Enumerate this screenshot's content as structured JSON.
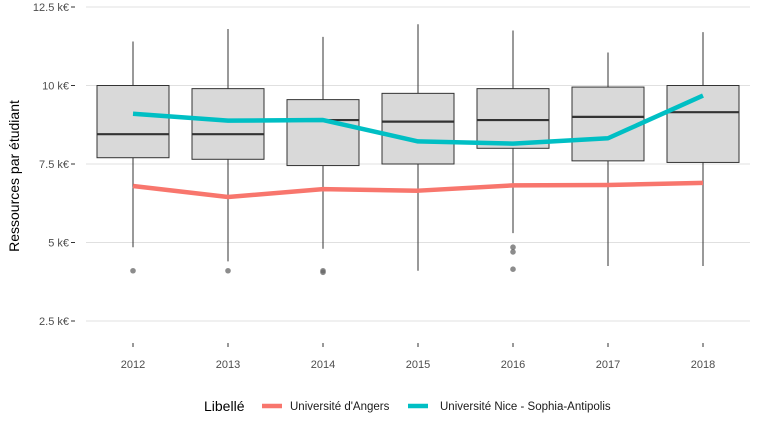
{
  "chart_data": {
    "type": "box",
    "ylabel": "Ressources par étudiant",
    "ylim": [
      1800,
      12500
    ],
    "y_ticks": [
      {
        "value": 2500,
        "label": "2.5 k€"
      },
      {
        "value": 5000,
        "label": "5 k€"
      },
      {
        "value": 7500,
        "label": "7.5 k€"
      },
      {
        "value": 10000,
        "label": "10 k€"
      },
      {
        "value": 12500,
        "label": "12.5 k€"
      }
    ],
    "categories": [
      "2012",
      "2013",
      "2014",
      "2015",
      "2016",
      "2017",
      "2018"
    ],
    "boxes": [
      {
        "year": "2012",
        "whisker_low": 4850,
        "q1": 7700,
        "median": 8450,
        "q3": 10000,
        "whisker_high": 11400,
        "outliers": [
          4100
        ]
      },
      {
        "year": "2013",
        "whisker_low": 4400,
        "q1": 7650,
        "median": 8450,
        "q3": 9900,
        "whisker_high": 11800,
        "outliers": [
          4100
        ]
      },
      {
        "year": "2014",
        "whisker_low": 4800,
        "q1": 7450,
        "median": 8900,
        "q3": 9550,
        "whisker_high": 11550,
        "outliers": [
          4100,
          4050
        ]
      },
      {
        "year": "2015",
        "whisker_low": 4100,
        "q1": 7500,
        "median": 8850,
        "q3": 9750,
        "whisker_high": 11950,
        "outliers": []
      },
      {
        "year": "2016",
        "whisker_low": 5300,
        "q1": 8000,
        "median": 8900,
        "q3": 9900,
        "whisker_high": 11750,
        "outliers": [
          4850,
          4700,
          4150
        ]
      },
      {
        "year": "2017",
        "whisker_low": 4250,
        "q1": 7600,
        "median": 9000,
        "q3": 9950,
        "whisker_high": 11050,
        "outliers": []
      },
      {
        "year": "2018",
        "whisker_low": 4250,
        "q1": 7550,
        "median": 9150,
        "q3": 10000,
        "whisker_high": 11700,
        "outliers": []
      }
    ],
    "series": [
      {
        "name": "Université d'Angers",
        "color": "#f8766d",
        "values": [
          6800,
          6450,
          6700,
          6650,
          6820,
          6830,
          6900
        ]
      },
      {
        "name": "Université Nice - Sophia-Antipolis",
        "color": "#00bfc4",
        "values": [
          9100,
          8880,
          8900,
          8220,
          8150,
          8320,
          9680
        ]
      }
    ],
    "legend": {
      "title": "Libellé",
      "position": "bottom"
    },
    "grid": true,
    "colors": {
      "box_fill": "#d9d9d9",
      "box_stroke": "#333333",
      "outlier": "#666666",
      "grid": "#e0e0e0"
    }
  }
}
